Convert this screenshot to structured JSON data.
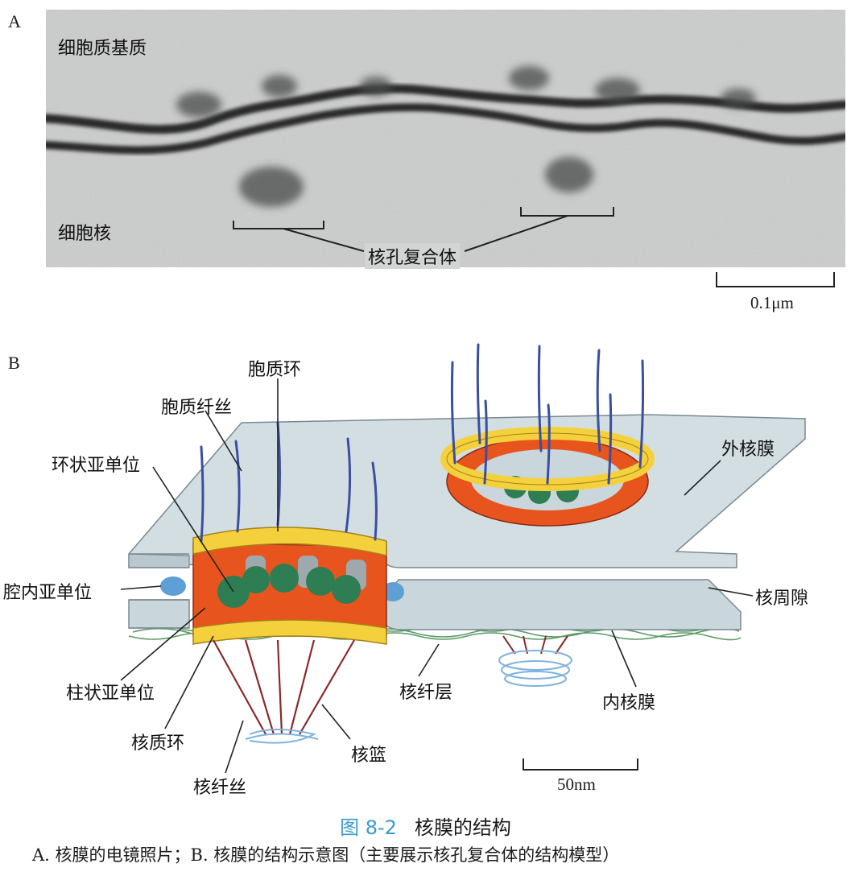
{
  "panel_a": {
    "letter": "A",
    "labels": {
      "cytoplasm": "细胞质基质",
      "nucleus": "细胞核",
      "npc": "核孔复合体"
    },
    "scale_bar": "0.1μm"
  },
  "panel_b": {
    "letter": "B",
    "labels": {
      "cyto_ring": "胞质环",
      "cyto_fibril": "胞质纤丝",
      "annular": "环状亚单位",
      "lumenal": "腔内亚单位",
      "column": "柱状亚单位",
      "nuclear_ring": "核质环",
      "nuclear_fibril": "核纤丝",
      "basket": "核篮",
      "lamina": "核纤层",
      "inner_membrane": "内核膜",
      "outer_membrane": "外核膜",
      "perinuclear": "核周隙"
    },
    "scale_bar": "50nm"
  },
  "caption": {
    "figure_number": "图 8-2",
    "title": "核膜的结构",
    "description": "A. 核膜的电镜照片；B. 核膜的结构示意图（主要展示核孔复合体的结构模型）"
  },
  "colors": {
    "figure_number": "#3a9ad0",
    "membrane": "#c9d6dc",
    "annular_yellow": "#f4d13c",
    "column_orange": "#e8541e",
    "central_green": "#2f7d52",
    "lumenal_blue": "#5ea0d6",
    "fibril_blue": "#3b4fa0",
    "basket_red": "#8a2a2a"
  }
}
